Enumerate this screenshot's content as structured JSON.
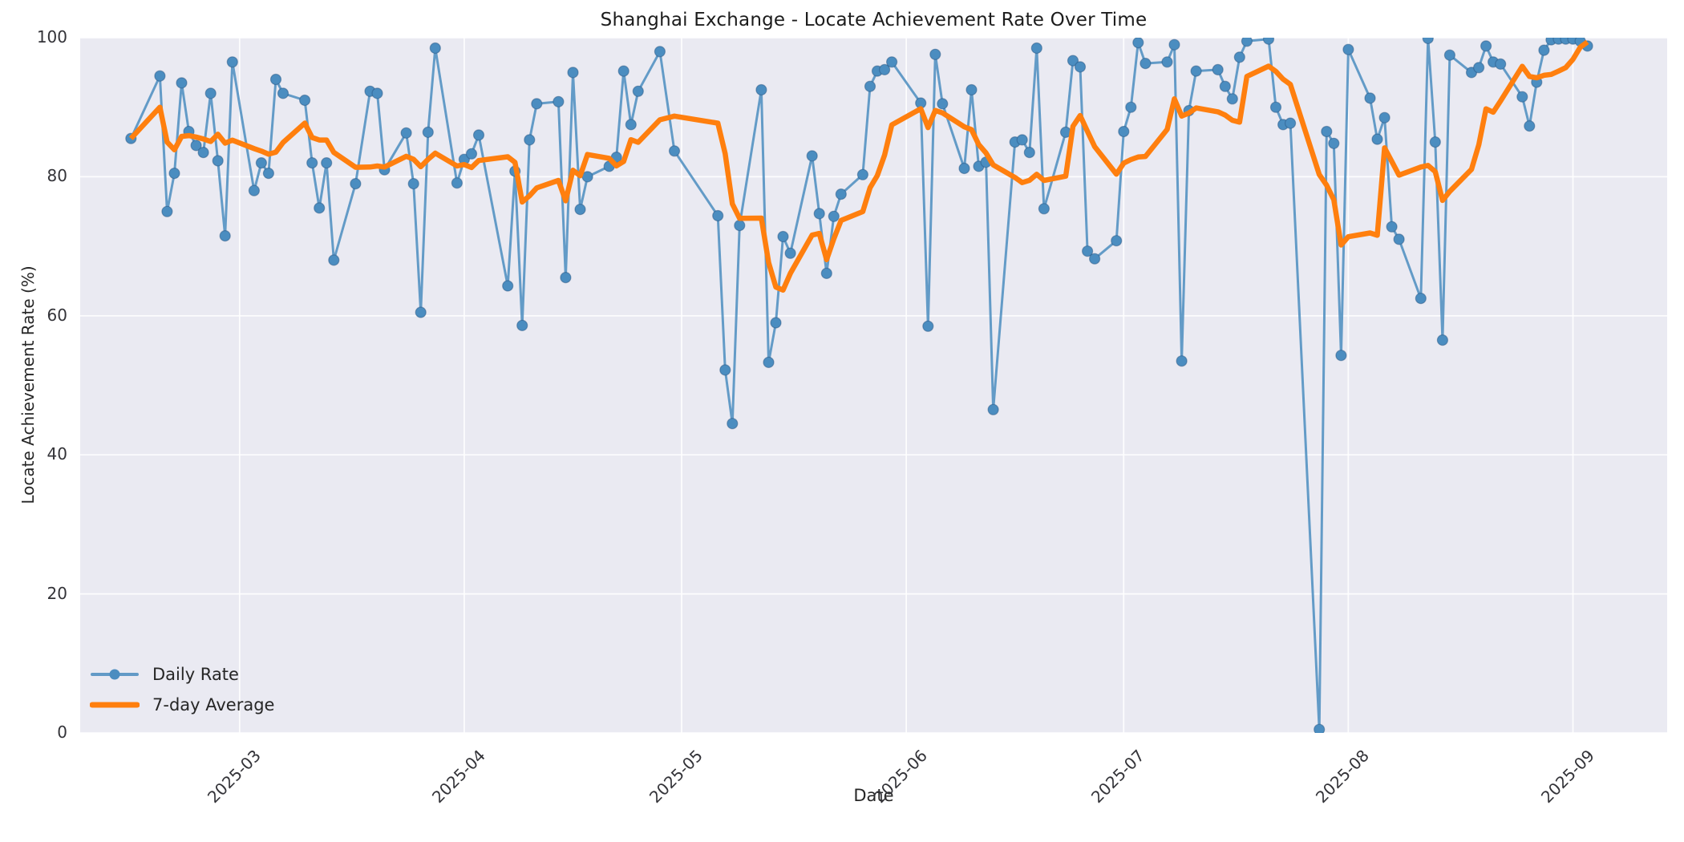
{
  "title": "Shanghai Exchange - Locate Achievement Rate Over Time",
  "axes": {
    "xlabel": "Date",
    "ylabel": "Locate Achievement Rate (%)",
    "yticks": [
      0,
      20,
      40,
      60,
      80,
      100
    ],
    "xticks": [
      "2025-03",
      "2025-04",
      "2025-05",
      "2025-06",
      "2025-07",
      "2025-08",
      "2025-09"
    ]
  },
  "legend": {
    "items": [
      {
        "label": "Daily Rate",
        "color": "#4b8dc0",
        "style": "line-marker"
      },
      {
        "label": "7-day Average",
        "color": "#ff7f0e",
        "style": "line"
      }
    ],
    "position": "lower left"
  },
  "colors": {
    "axes_background": "#eaeaf2",
    "grid": "#ffffff",
    "daily_line": "#4b8dc0",
    "average_line": "#ff7f0e",
    "text": "#262626"
  },
  "chart_data": {
    "type": "line",
    "title": "Shanghai Exchange - Locate Achievement Rate Over Time",
    "xlabel": "Date",
    "ylabel": "Locate Achievement Rate (%)",
    "ylim": [
      0,
      100
    ],
    "xlim": [
      "2025-02-07",
      "2025-09-14"
    ],
    "grid": true,
    "legend_position": "lower left",
    "series": [
      {
        "name": "Daily Rate",
        "style": "line-marker",
        "color": "#4b8dc0",
        "points": [
          [
            "2025-02-14",
            85.5
          ],
          [
            "2025-02-18",
            94.5
          ],
          [
            "2025-02-19",
            75.0
          ],
          [
            "2025-02-20",
            80.5
          ],
          [
            "2025-02-21",
            93.5
          ],
          [
            "2025-02-22",
            86.5
          ],
          [
            "2025-02-23",
            84.5
          ],
          [
            "2025-02-24",
            83.5
          ],
          [
            "2025-02-25",
            92.0
          ],
          [
            "2025-02-26",
            82.3
          ],
          [
            "2025-02-27",
            71.5
          ],
          [
            "2025-02-28",
            96.5
          ],
          [
            "2025-03-03",
            78.0
          ],
          [
            "2025-03-04",
            82.0
          ],
          [
            "2025-03-05",
            80.5
          ],
          [
            "2025-03-06",
            94.0
          ],
          [
            "2025-03-07",
            92.0
          ],
          [
            "2025-03-10",
            91.0
          ],
          [
            "2025-03-11",
            82.0
          ],
          [
            "2025-03-12",
            75.5
          ],
          [
            "2025-03-13",
            82.0
          ],
          [
            "2025-03-14",
            68.0
          ],
          [
            "2025-03-17",
            79.0
          ],
          [
            "2025-03-19",
            92.3
          ],
          [
            "2025-03-20",
            92.0
          ],
          [
            "2025-03-21",
            81.0
          ],
          [
            "2025-03-24",
            86.3
          ],
          [
            "2025-03-25",
            79.0
          ],
          [
            "2025-03-26",
            60.5
          ],
          [
            "2025-03-27",
            86.4
          ],
          [
            "2025-03-28",
            98.5
          ],
          [
            "2025-03-31",
            79.1
          ],
          [
            "2025-04-01",
            82.5
          ],
          [
            "2025-04-02",
            83.3
          ],
          [
            "2025-04-03",
            86.0
          ],
          [
            "2025-04-07",
            64.3
          ],
          [
            "2025-04-08",
            80.8
          ],
          [
            "2025-04-09",
            58.6
          ],
          [
            "2025-04-10",
            85.3
          ],
          [
            "2025-04-11",
            90.5
          ],
          [
            "2025-04-14",
            90.8
          ],
          [
            "2025-04-15",
            65.5
          ],
          [
            "2025-04-16",
            95.0
          ],
          [
            "2025-04-17",
            75.3
          ],
          [
            "2025-04-18",
            80.0
          ],
          [
            "2025-04-21",
            81.5
          ],
          [
            "2025-04-22",
            82.8
          ],
          [
            "2025-04-23",
            95.2
          ],
          [
            "2025-04-24",
            87.5
          ],
          [
            "2025-04-25",
            92.3
          ],
          [
            "2025-04-28",
            98.0
          ],
          [
            "2025-04-30",
            83.7
          ],
          [
            "2025-05-06",
            74.4
          ],
          [
            "2025-05-07",
            52.2
          ],
          [
            "2025-05-08",
            44.5
          ],
          [
            "2025-05-09",
            73.0
          ],
          [
            "2025-05-12",
            92.5
          ],
          [
            "2025-05-13",
            53.3
          ],
          [
            "2025-05-14",
            59.0
          ],
          [
            "2025-05-15",
            71.4
          ],
          [
            "2025-05-16",
            69.0
          ],
          [
            "2025-05-19",
            83.0
          ],
          [
            "2025-05-20",
            74.7
          ],
          [
            "2025-05-21",
            66.1
          ],
          [
            "2025-05-22",
            74.3
          ],
          [
            "2025-05-23",
            77.5
          ],
          [
            "2025-05-26",
            80.3
          ],
          [
            "2025-05-27",
            93.0
          ],
          [
            "2025-05-28",
            95.2
          ],
          [
            "2025-05-29",
            95.4
          ],
          [
            "2025-05-30",
            96.5
          ],
          [
            "2025-06-03",
            90.6
          ],
          [
            "2025-06-04",
            58.5
          ],
          [
            "2025-06-05",
            97.6
          ],
          [
            "2025-06-06",
            90.5
          ],
          [
            "2025-06-09",
            81.2
          ],
          [
            "2025-06-10",
            92.5
          ],
          [
            "2025-06-11",
            81.5
          ],
          [
            "2025-06-12",
            82.1
          ],
          [
            "2025-06-13",
            46.5
          ],
          [
            "2025-06-16",
            85.0
          ],
          [
            "2025-06-17",
            85.3
          ],
          [
            "2025-06-18",
            83.5
          ],
          [
            "2025-06-19",
            98.5
          ],
          [
            "2025-06-20",
            75.4
          ],
          [
            "2025-06-23",
            86.4
          ],
          [
            "2025-06-24",
            96.7
          ],
          [
            "2025-06-25",
            95.8
          ],
          [
            "2025-06-26",
            69.3
          ],
          [
            "2025-06-27",
            68.2
          ],
          [
            "2025-06-30",
            70.8
          ],
          [
            "2025-07-01",
            86.5
          ],
          [
            "2025-07-02",
            90.0
          ],
          [
            "2025-07-03",
            99.3
          ],
          [
            "2025-07-04",
            96.3
          ],
          [
            "2025-07-07",
            96.5
          ],
          [
            "2025-07-08",
            99.0
          ],
          [
            "2025-07-09",
            53.5
          ],
          [
            "2025-07-10",
            89.5
          ],
          [
            "2025-07-11",
            95.2
          ],
          [
            "2025-07-14",
            95.4
          ],
          [
            "2025-07-15",
            93.0
          ],
          [
            "2025-07-16",
            91.2
          ],
          [
            "2025-07-17",
            97.2
          ],
          [
            "2025-07-18",
            99.5
          ],
          [
            "2025-07-21",
            99.8
          ],
          [
            "2025-07-22",
            90.0
          ],
          [
            "2025-07-23",
            87.5
          ],
          [
            "2025-07-24",
            87.7
          ],
          [
            "2025-07-28",
            0.5
          ],
          [
            "2025-07-29",
            86.5
          ],
          [
            "2025-07-30",
            84.8
          ],
          [
            "2025-07-31",
            54.3
          ],
          [
            "2025-08-01",
            98.3
          ],
          [
            "2025-08-04",
            91.3
          ],
          [
            "2025-08-05",
            85.4
          ],
          [
            "2025-08-06",
            88.5
          ],
          [
            "2025-08-07",
            72.8
          ],
          [
            "2025-08-08",
            71.0
          ],
          [
            "2025-08-11",
            62.5
          ],
          [
            "2025-08-12",
            99.9
          ],
          [
            "2025-08-13",
            85.0
          ],
          [
            "2025-08-14",
            56.5
          ],
          [
            "2025-08-15",
            97.5
          ],
          [
            "2025-08-18",
            95.0
          ],
          [
            "2025-08-19",
            95.7
          ],
          [
            "2025-08-20",
            98.8
          ],
          [
            "2025-08-21",
            96.5
          ],
          [
            "2025-08-22",
            96.2
          ],
          [
            "2025-08-25",
            91.5
          ],
          [
            "2025-08-26",
            87.3
          ],
          [
            "2025-08-27",
            93.6
          ],
          [
            "2025-08-28",
            98.2
          ],
          [
            "2025-08-29",
            99.7
          ],
          [
            "2025-08-30",
            99.8
          ],
          [
            "2025-08-31",
            99.8
          ],
          [
            "2025-09-01",
            99.8
          ],
          [
            "2025-09-02",
            99.5
          ],
          [
            "2025-09-03",
            98.8
          ]
        ]
      },
      {
        "name": "7-day Average",
        "style": "line",
        "color": "#ff7f0e",
        "derived": "rolling_mean_window_7_min_periods_1_of_Daily_Rate"
      }
    ]
  }
}
